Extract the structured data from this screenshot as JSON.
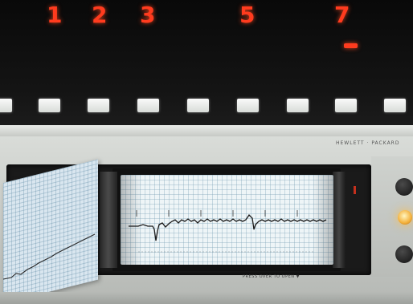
{
  "display": {
    "channel_numbers": [
      "1",
      "2",
      "3",
      "5",
      "7"
    ],
    "indicator_color": "#ff3b1e",
    "button_count": 9
  },
  "monitor": {
    "brand_text": "HEWLETT · PACKARD",
    "bottom_label": "PRESS OVER TO OPEN ▼",
    "lamp_color": "#f4b03a"
  },
  "ecg": {
    "trace_color": "#1a1a1a",
    "paper_color": "#eef5f7"
  }
}
